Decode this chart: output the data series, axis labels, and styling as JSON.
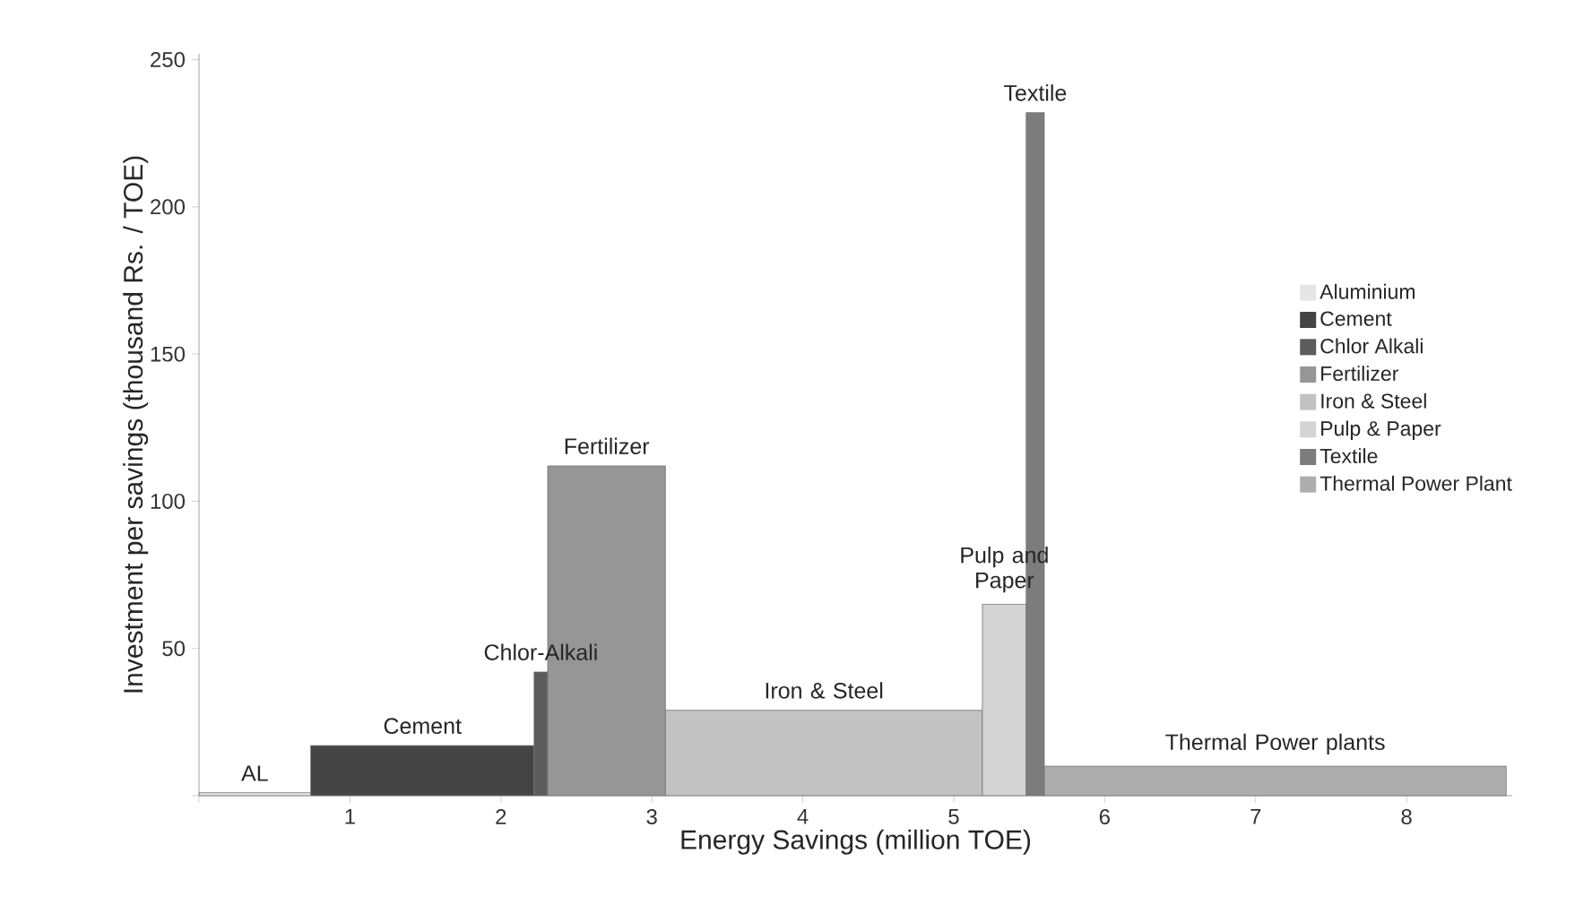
{
  "chart_data": {
    "type": "histogram",
    "xlabel": "Energy Savings (million TOE)",
    "ylabel": "Investment per savings (thousand Rs. / TOE)",
    "xlim": [
      0,
      8.7
    ],
    "ylim": [
      0,
      252
    ],
    "xticks": [
      {
        "value": 0,
        "label": null
      },
      1,
      2,
      3,
      4,
      5,
      6,
      7,
      8
    ],
    "yticks": [
      {
        "value": 0,
        "label": null
      },
      50,
      100,
      150,
      200,
      250
    ],
    "legend": "right",
    "grid": false,
    "bins": [
      0,
      0.74,
      2.22,
      2.31,
      3.09,
      5.19,
      5.48,
      5.6,
      8.66
    ],
    "series": [
      {
        "name": "Aluminium",
        "color": "#e6e6e6",
        "values": [
          1,
          null,
          null,
          null,
          null,
          null,
          null,
          null
        ]
      },
      {
        "name": "Cement",
        "color": "#444444",
        "values": [
          null,
          17,
          null,
          null,
          null,
          null,
          null,
          null
        ]
      },
      {
        "name": "Chlor Alkali",
        "color": "#5c5c5c",
        "values": [
          null,
          null,
          42,
          null,
          null,
          null,
          null,
          null
        ]
      },
      {
        "name": "Fertilizer",
        "color": "#969696",
        "values": [
          null,
          null,
          null,
          112,
          null,
          null,
          null,
          null
        ]
      },
      {
        "name": "Iron & Steel",
        "color": "#c2c2c2",
        "values": [
          null,
          null,
          null,
          null,
          29,
          null,
          null,
          null
        ]
      },
      {
        "name": "Pulp & Paper",
        "color": "#d4d4d4",
        "values": [
          null,
          null,
          null,
          null,
          null,
          65,
          null,
          null
        ]
      },
      {
        "name": "Textile",
        "color": "#7c7c7c",
        "values": [
          null,
          null,
          null,
          null,
          null,
          null,
          232,
          null
        ]
      },
      {
        "name": "Thermal Power Plant",
        "color": "#adadad",
        "values": [
          null,
          null,
          null,
          null,
          null,
          null,
          null,
          10
        ]
      }
    ],
    "annotations": [
      {
        "text": "AL",
        "x": 0.37,
        "y": 1
      },
      {
        "text": "Cement",
        "x": 1.48,
        "y": 17
      },
      {
        "text": "Chlor-Alkali",
        "x": 2.265,
        "y": 42
      },
      {
        "text": "Fertilizer",
        "x": 2.7,
        "y": 112
      },
      {
        "text": "Iron & Steel",
        "x": 4.14,
        "y": 29
      },
      {
        "text": "Pulp and Paper",
        "x": 5.335,
        "y": 65
      },
      {
        "text": "Textile",
        "x": 5.54,
        "y": 232
      },
      {
        "text": "Thermal Power plants",
        "x": 7.13,
        "y": 10
      }
    ]
  }
}
